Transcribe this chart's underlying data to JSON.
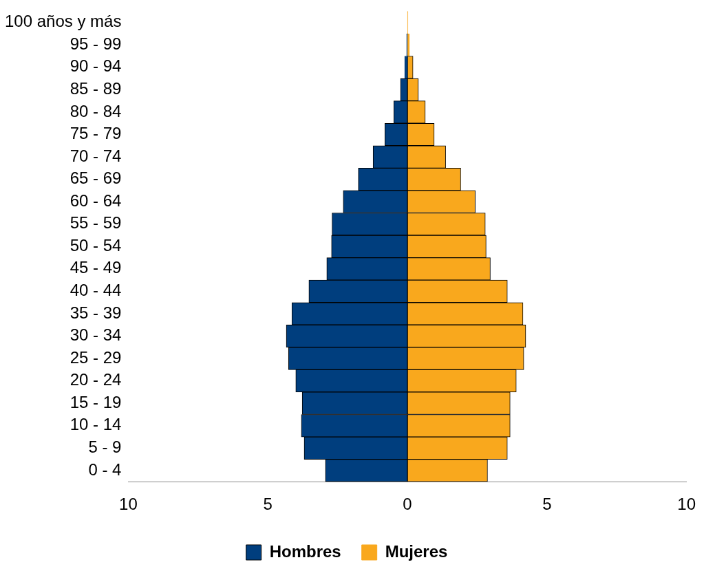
{
  "chart_data": {
    "type": "bar",
    "orientation": "horizontal",
    "stacked": true,
    "categories": [
      "100 años y más",
      "95 - 99",
      "90 - 94",
      "85 - 89",
      "80 - 84",
      "75 - 79",
      "70 - 74",
      "65 - 69",
      "60 - 64",
      "55 - 59",
      "50 - 54",
      "45 - 49",
      "40 - 44",
      "35 - 39",
      "30 - 34",
      "25 - 29",
      "20 - 24",
      "15 - 19",
      "10 - 14",
      "5 - 9",
      "0 - 4"
    ],
    "series": [
      {
        "name": "Hombres",
        "color": "#003e7e",
        "values": [
          null,
          -0.03,
          -0.1,
          -0.25,
          -0.49,
          -0.81,
          -1.23,
          -1.76,
          -2.3,
          -2.7,
          -2.72,
          -2.89,
          -3.53,
          -4.14,
          -4.34,
          -4.26,
          -4.0,
          -3.77,
          -3.8,
          -3.7,
          -2.94
        ]
      },
      {
        "name": "Mujeres",
        "color": "#f9a81d",
        "values": [
          0.02,
          0.07,
          0.2,
          0.39,
          0.64,
          0.96,
          1.37,
          1.91,
          2.43,
          2.79,
          2.82,
          2.97,
          3.58,
          4.14,
          4.24,
          4.17,
          3.9,
          3.68,
          3.68,
          3.58,
          2.87
        ]
      }
    ],
    "xlim": [
      -10,
      10
    ],
    "xticks": [
      {
        "value": -10,
        "label": "10"
      },
      {
        "value": -5,
        "label": "5"
      },
      0,
      5,
      10
    ],
    "grid": false,
    "legend": "bottom"
  }
}
